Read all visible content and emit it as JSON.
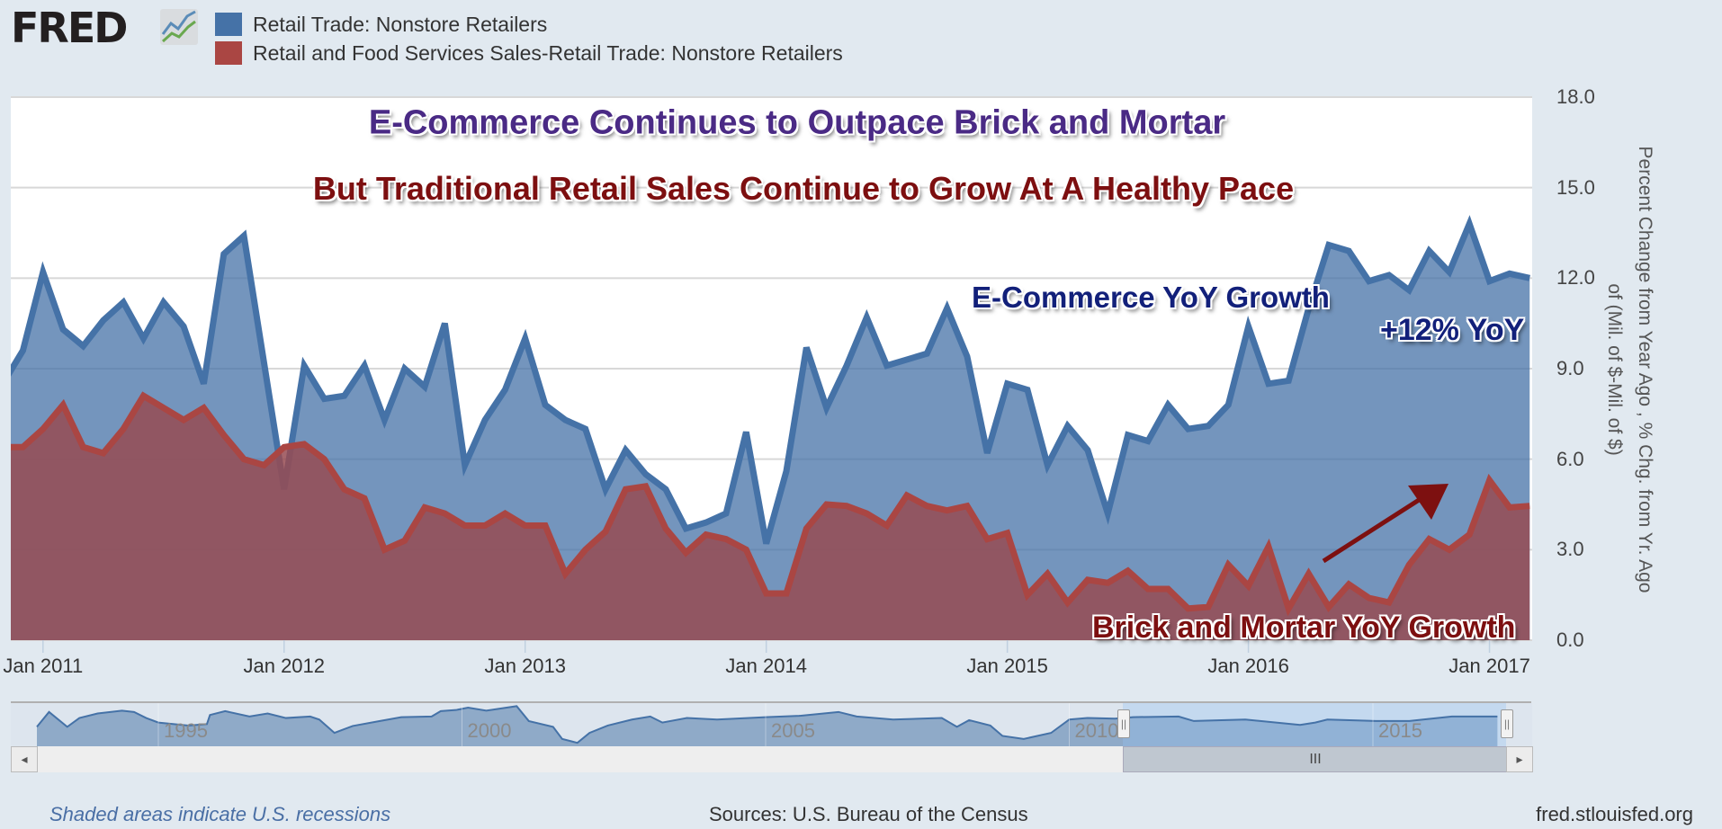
{
  "header": {
    "logo_text": "FRED",
    "legend": [
      {
        "label": "Retail Trade: Nonstore Retailers",
        "color": "#4572a7"
      },
      {
        "label": "Retail and Food Services Sales-Retail Trade: Nonstore Retailers",
        "color": "#aa4643"
      }
    ]
  },
  "annotations": {
    "title1": "E-Commerce Continues to Outpace Brick and Mortar",
    "title2": "But Traditional Retail Sales Continue to Grow At A Healthy Pace",
    "ecommerce_label": "E-Commerce YoY Growth",
    "yoy_label": "+12% YoY",
    "brick_label": "Brick and Mortar YoY Growth",
    "title1_color": "#4a2a85",
    "title2_color": "#7d0f10",
    "ecommerce_color": "#12207a",
    "arrow_color": "#7d1010"
  },
  "chart_data": {
    "type": "area",
    "ylabel_line1": "Percent Change from Year Ago , % Chg. from Yr. Ago",
    "ylabel_line2": "of (Mil. of $-Mil. of $)",
    "ylim": [
      0,
      18
    ],
    "y_ticks": [
      "0.0",
      "3.0",
      "6.0",
      "9.0",
      "12.0",
      "15.0",
      "18.0"
    ],
    "x_ticks": [
      "Jan 2011",
      "Jan 2012",
      "Jan 2013",
      "Jan 2014",
      "Jan 2015",
      "Jan 2016",
      "Jan 2017"
    ],
    "x_range": [
      "2010-11",
      "2017-03"
    ],
    "grid": true,
    "legend_position": "top",
    "series": [
      {
        "name": "Retail Trade: Nonstore Retailers",
        "color": "#4572a7",
        "values": [
          8.5,
          9.6,
          12.2,
          10.3,
          9.75,
          10.6,
          11.2,
          10.0,
          11.2,
          10.4,
          8.5,
          12.8,
          13.4,
          9.2,
          5.0,
          9.1,
          8.0,
          8.1,
          9.1,
          7.3,
          9.0,
          8.4,
          10.5,
          5.8,
          7.3,
          8.3,
          10.0,
          7.8,
          7.3,
          7.0,
          5.0,
          6.3,
          5.5,
          5.0,
          3.7,
          3.9,
          4.2,
          6.9,
          3.2,
          5.6,
          9.7,
          7.7,
          9.1,
          10.7,
          9.1,
          9.3,
          9.5,
          11.0,
          9.4,
          6.2,
          8.5,
          8.3,
          5.8,
          7.1,
          6.3,
          4.2,
          6.8,
          6.6,
          7.8,
          7.0,
          7.1,
          7.8,
          10.4,
          8.5,
          8.6,
          11.0,
          13.1,
          12.9,
          11.9,
          12.1,
          11.6,
          12.9,
          12.2,
          13.8,
          11.9,
          12.15,
          12.0
        ]
      },
      {
        "name": "Retail and Food Services Sales-Retail Trade: Nonstore Retailers",
        "color": "#aa4643",
        "values": [
          6.4,
          6.4,
          7.0,
          7.8,
          6.4,
          6.2,
          7.0,
          8.1,
          7.7,
          7.3,
          7.7,
          6.8,
          6.0,
          5.8,
          6.4,
          6.5,
          6.0,
          5.0,
          4.7,
          3.0,
          3.3,
          4.4,
          4.2,
          3.8,
          3.8,
          4.2,
          3.8,
          3.8,
          2.2,
          3.0,
          3.6,
          5.0,
          5.1,
          3.7,
          2.9,
          3.5,
          3.35,
          3.0,
          1.55,
          1.55,
          3.7,
          4.5,
          4.45,
          4.2,
          3.8,
          4.8,
          4.45,
          4.3,
          4.45,
          3.35,
          3.55,
          1.5,
          2.2,
          1.25,
          2.0,
          1.9,
          2.3,
          1.7,
          1.7,
          1.05,
          1.1,
          2.5,
          1.8,
          3.1,
          1.05,
          2.2,
          1.1,
          1.85,
          1.4,
          1.25,
          2.5,
          3.35,
          3.0,
          3.5,
          5.3,
          4.4,
          4.45
        ]
      }
    ],
    "navigator": {
      "x_labels": [
        "1995",
        "2000",
        "2005",
        "2010",
        "2015"
      ],
      "selected_range": [
        "2010-11",
        "2017-03"
      ],
      "points": [
        [
          1993.0,
          7.0
        ],
        [
          1993.2,
          13.9
        ],
        [
          1993.5,
          7.0
        ],
        [
          1993.7,
          11.1
        ],
        [
          1994.0,
          13.2
        ],
        [
          1994.4,
          14.5
        ],
        [
          1994.6,
          13.9
        ],
        [
          1994.8,
          11.1
        ],
        [
          1995.0,
          9.0
        ],
        [
          1995.5,
          7.6
        ],
        [
          1995.8,
          8.3
        ],
        [
          1995.85,
          12.5
        ],
        [
          1996.1,
          14.3
        ],
        [
          1996.5,
          11.8
        ],
        [
          1996.8,
          13.2
        ],
        [
          1997.1,
          11.1
        ],
        [
          1997.5,
          11.8
        ],
        [
          1997.65,
          10.4
        ],
        [
          1997.9,
          4.2
        ],
        [
          1998.2,
          7.4
        ],
        [
          1998.65,
          9.7
        ],
        [
          1999.0,
          11.5
        ],
        [
          1999.5,
          11.8
        ],
        [
          1999.65,
          14.3
        ],
        [
          1999.9,
          14.8
        ],
        [
          2000.1,
          15.9
        ],
        [
          2000.4,
          14.5
        ],
        [
          2000.9,
          16.6
        ],
        [
          2001.1,
          9.7
        ],
        [
          2001.5,
          7.0
        ],
        [
          2001.65,
          1.4
        ],
        [
          2001.9,
          -0.4
        ],
        [
          2002.1,
          4.2
        ],
        [
          2002.4,
          7.6
        ],
        [
          2002.8,
          10.4
        ],
        [
          2003.1,
          11.8
        ],
        [
          2003.3,
          9.0
        ],
        [
          2003.7,
          11.1
        ],
        [
          2004.2,
          10.4
        ],
        [
          2005.0,
          11.5
        ],
        [
          2005.55,
          12.1
        ],
        [
          2006.2,
          13.9
        ],
        [
          2006.5,
          11.8
        ],
        [
          2007.1,
          10.4
        ],
        [
          2007.9,
          11.1
        ],
        [
          2008.15,
          7.0
        ],
        [
          2008.35,
          10.1
        ],
        [
          2008.7,
          7.6
        ],
        [
          2008.9,
          2.8
        ],
        [
          2009.25,
          1.4
        ],
        [
          2009.7,
          4.2
        ],
        [
          2010.0,
          10.4
        ],
        [
          2010.3,
          11.1
        ],
        [
          2010.75,
          10.8
        ],
        [
          2011.05,
          11.5
        ],
        [
          2011.8,
          11.8
        ],
        [
          2012.05,
          9.7
        ],
        [
          2012.9,
          10.4
        ],
        [
          2013.8,
          7.9
        ],
        [
          2014.05,
          9.0
        ],
        [
          2014.25,
          10.4
        ],
        [
          2015.05,
          9.7
        ],
        [
          2015.6,
          9.7
        ],
        [
          2016.3,
          11.8
        ],
        [
          2017.05,
          11.8
        ]
      ]
    }
  },
  "footer": {
    "recession_note": "Shaded areas indicate U.S. recessions",
    "sources": "Sources: U.S. Bureau of the Census",
    "site": "fred.stlouisfed.org"
  },
  "scrollbar": {
    "grip": "III",
    "left_arrow": "◂",
    "right_arrow": "▸",
    "handle_grip": "||"
  }
}
